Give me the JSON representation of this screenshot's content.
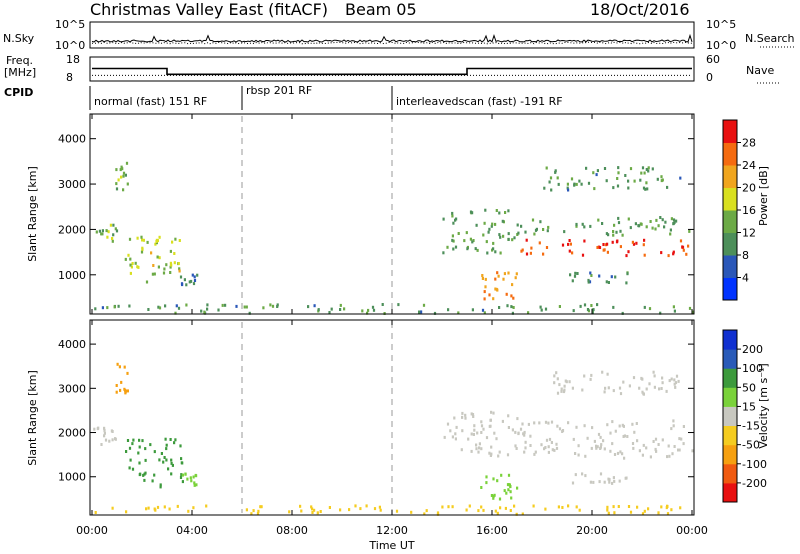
{
  "header": {
    "title": "Christmas Valley East (fitACF)",
    "beam": "Beam 05",
    "date": "18/Oct/2016"
  },
  "noise_panel": {
    "left_label": "N.Sky",
    "left_ticks": [
      "10^5",
      "10^0"
    ],
    "right_label": "N.Search",
    "right_ticks": [
      "10^5",
      "10^0"
    ]
  },
  "freq_panel": {
    "left_label_1": "Freq.",
    "left_label_2": "[MHz]",
    "left_ticks": [
      "18",
      "8"
    ],
    "right_label": "Nave",
    "right_ticks": [
      "60",
      "0"
    ],
    "freq_steps": [
      {
        "t0": 0,
        "t1": 3,
        "mhz": 13.2
      },
      {
        "t0": 3,
        "t1": 15,
        "mhz": 10.8
      },
      {
        "t0": 15,
        "t1": 24,
        "mhz": 13.2
      }
    ],
    "nave": 14
  },
  "cpid": {
    "label": "CPID",
    "segments": [
      {
        "text": "normal (fast) 151 RF",
        "start": 0
      },
      {
        "text": "rbsp 201 RF",
        "start": 6
      },
      {
        "text": "interleavedscan (fast) -191 RF",
        "start": 12
      }
    ]
  },
  "x_axis": {
    "label": "Time UT",
    "ticks": [
      "00:00",
      "04:00",
      "08:00",
      "12:00",
      "16:00",
      "20:00",
      "00:00"
    ]
  },
  "power_panel": {
    "ylabel": "Slant Range [km]",
    "yticks": [
      "1000",
      "2000",
      "3000",
      "4000"
    ],
    "colorbar_label": "Power [dB]",
    "colorbar_ticks": [
      "4",
      "8",
      "12",
      "16",
      "20",
      "24",
      "28"
    ]
  },
  "velocity_panel": {
    "ylabel": "Slant Range [km]",
    "yticks": [
      "1000",
      "2000",
      "3000",
      "4000"
    ],
    "colorbar_label": "Velocity [m s⁻¹]",
    "colorbar_ticks": [
      "-200",
      "-100",
      "-50",
      "-15",
      "15",
      "50",
      "100",
      "200"
    ]
  },
  "chart_data": {
    "type": "heatmap",
    "x_range_hours": [
      0,
      24
    ],
    "y_range_km": [
      180,
      4500
    ],
    "power_scale_db": [
      0,
      32
    ],
    "velocity_scale": [
      -250,
      250
    ],
    "power_colors": [
      "#0033ff",
      "#2a57b8",
      "#4d8f5a",
      "#6caa46",
      "#d9e020",
      "#f0a51e",
      "#f56b10",
      "#e81010"
    ],
    "velocity_colors": [
      "#e81010",
      "#f05a10",
      "#f6a010",
      "#f5cc20",
      "#c8c8c0",
      "#7ad23a",
      "#3c9a3c",
      "#2a5bb8",
      "#1030d0"
    ],
    "power_blobs": [
      {
        "t0": 0.0,
        "t1": 1.0,
        "r0": 1750,
        "r1": 2150,
        "p": 14
      },
      {
        "t0": 0.9,
        "t1": 1.4,
        "r0": 2900,
        "r1": 3600,
        "p": 14
      },
      {
        "t0": 1.3,
        "t1": 3.6,
        "r0": 800,
        "r1": 1900,
        "p": 17
      },
      {
        "t0": 3.5,
        "t1": 4.2,
        "r0": 800,
        "r1": 1100,
        "p": 8
      },
      {
        "t0": 0.0,
        "t1": 24.0,
        "r0": 180,
        "r1": 380,
        "p": 11
      },
      {
        "t0": 14.0,
        "t1": 17.0,
        "r0": 1500,
        "r1": 2500,
        "p": 12
      },
      {
        "t0": 15.5,
        "t1": 17.0,
        "r0": 500,
        "r1": 1100,
        "p": 24
      },
      {
        "t0": 17.0,
        "t1": 24.0,
        "r0": 1450,
        "r1": 1800,
        "p": 28
      },
      {
        "t0": 17.0,
        "t1": 24.0,
        "r0": 1900,
        "r1": 2300,
        "p": 12
      },
      {
        "t0": 18.0,
        "t1": 23.5,
        "r0": 2900,
        "r1": 3400,
        "p": 11
      },
      {
        "t0": 19.0,
        "t1": 21.5,
        "r0": 850,
        "r1": 1100,
        "p": 9
      }
    ],
    "velocity_blobs": [
      {
        "t0": 0.0,
        "t1": 1.0,
        "r0": 1750,
        "r1": 2150,
        "v": 0
      },
      {
        "t0": 0.9,
        "t1": 1.4,
        "r0": 2900,
        "r1": 3600,
        "v": -80
      },
      {
        "t0": 1.3,
        "t1": 3.6,
        "r0": 800,
        "r1": 1900,
        "v": 60
      },
      {
        "t0": 3.5,
        "t1": 4.2,
        "r0": 800,
        "r1": 1100,
        "v": 40
      },
      {
        "t0": 0.0,
        "t1": 24.0,
        "r0": 180,
        "r1": 380,
        "v": -25
      },
      {
        "t0": 14.0,
        "t1": 17.0,
        "r0": 1500,
        "r1": 2500,
        "v": 0
      },
      {
        "t0": 15.5,
        "t1": 17.0,
        "r0": 500,
        "r1": 1100,
        "v": 30
      },
      {
        "t0": 17.0,
        "t1": 24.0,
        "r0": 1450,
        "r1": 2300,
        "v": 0
      },
      {
        "t0": 18.0,
        "t1": 23.5,
        "r0": 2900,
        "r1": 3400,
        "v": 0
      },
      {
        "t0": 19.0,
        "t1": 21.5,
        "r0": 850,
        "r1": 1100,
        "v": 0
      }
    ]
  }
}
